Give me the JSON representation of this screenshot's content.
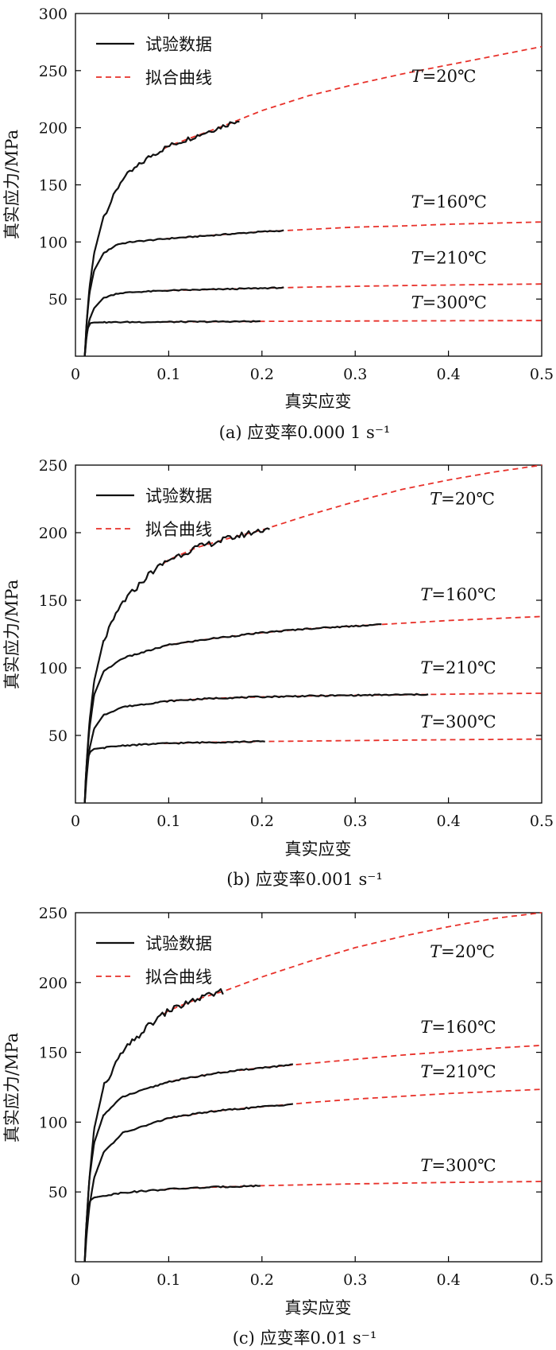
{
  "chart_data": [
    {
      "type": "line",
      "caption": "(a) 应变率0.000 1 s⁻¹",
      "xlabel": "真实应变",
      "ylabel": "真实应力/MPa",
      "xlim": [
        0,
        0.5
      ],
      "ylim": [
        0,
        300
      ],
      "xticks": [
        "0",
        "0.1",
        "0.2",
        "0.3",
        "0.4",
        "0.5"
      ],
      "yticks": [
        "50",
        "100",
        "150",
        "200",
        "250",
        "300"
      ],
      "legend": {
        "position": "top-left",
        "entries": [
          "试验数据",
          "拟合曲线"
        ]
      },
      "colors": {
        "experimental": "#111111",
        "fitted": "#e8312a"
      },
      "series": [
        {
          "name": "T=20℃",
          "label_x": 0.36,
          "label_y": 240,
          "exp_end": 0.178,
          "fit": [
            [
              0.01,
              0
            ],
            [
              0.012,
              30
            ],
            [
              0.015,
              60
            ],
            [
              0.02,
              90
            ],
            [
              0.03,
              122
            ],
            [
              0.05,
              155
            ],
            [
              0.08,
              175
            ],
            [
              0.1,
              184
            ],
            [
              0.13,
              193
            ],
            [
              0.16,
              202
            ],
            [
              0.2,
              215
            ],
            [
              0.25,
              228
            ],
            [
              0.3,
              238
            ],
            [
              0.35,
              247
            ],
            [
              0.4,
              255
            ],
            [
              0.45,
              263
            ],
            [
              0.5,
              271
            ]
          ]
        },
        {
          "name": "T=160℃",
          "label_x": 0.36,
          "label_y": 130,
          "exp_end": 0.225,
          "fit": [
            [
              0.01,
              0
            ],
            [
              0.012,
              30
            ],
            [
              0.015,
              55
            ],
            [
              0.02,
              75
            ],
            [
              0.03,
              90
            ],
            [
              0.045,
              98
            ],
            [
              0.06,
              100
            ],
            [
              0.1,
              103
            ],
            [
              0.15,
              106
            ],
            [
              0.2,
              109
            ],
            [
              0.25,
              111
            ],
            [
              0.3,
              113
            ],
            [
              0.35,
              114
            ],
            [
              0.4,
              115.5
            ],
            [
              0.45,
              116.5
            ],
            [
              0.5,
              117.5
            ]
          ]
        },
        {
          "name": "T=210℃",
          "label_x": 0.36,
          "label_y": 81,
          "exp_end": 0.225,
          "fit": [
            [
              0.01,
              0
            ],
            [
              0.012,
              18
            ],
            [
              0.015,
              32
            ],
            [
              0.02,
              42
            ],
            [
              0.03,
              51
            ],
            [
              0.045,
              55
            ],
            [
              0.06,
              56
            ],
            [
              0.1,
              57.5
            ],
            [
              0.15,
              58.5
            ],
            [
              0.2,
              59.5
            ],
            [
              0.25,
              60.5
            ],
            [
              0.3,
              61.2
            ],
            [
              0.35,
              61.8
            ],
            [
              0.4,
              62.3
            ],
            [
              0.45,
              62.8
            ],
            [
              0.5,
              63.2
            ]
          ]
        },
        {
          "name": "T=300℃",
          "label_x": 0.36,
          "label_y": 42,
          "exp_end": 0.2,
          "fit": [
            [
              0.01,
              0
            ],
            [
              0.011,
              12
            ],
            [
              0.013,
              24
            ],
            [
              0.016,
              29
            ],
            [
              0.02,
              29.5
            ],
            [
              0.05,
              29.8
            ],
            [
              0.1,
              30
            ],
            [
              0.2,
              30.5
            ],
            [
              0.3,
              30.8
            ],
            [
              0.4,
              31
            ],
            [
              0.5,
              31.2
            ]
          ]
        }
      ]
    },
    {
      "type": "line",
      "caption": "(b) 应变率0.001 s⁻¹",
      "xlabel": "真实应变",
      "ylabel": "真实应力/MPa",
      "xlim": [
        0,
        0.5
      ],
      "ylim": [
        0,
        250
      ],
      "xticks": [
        "0",
        "0.1",
        "0.2",
        "0.3",
        "0.4",
        "0.5"
      ],
      "yticks": [
        "50",
        "100",
        "150",
        "200",
        "250"
      ],
      "legend": {
        "position": "top-left",
        "entries": [
          "试验数据",
          "拟合曲线"
        ]
      },
      "colors": {
        "experimental": "#111111",
        "fitted": "#e8312a"
      },
      "series": [
        {
          "name": "T=20℃",
          "label_x": 0.38,
          "label_y": 221,
          "exp_end": 0.21,
          "fit": [
            [
              0.01,
              0
            ],
            [
              0.012,
              30
            ],
            [
              0.015,
              60
            ],
            [
              0.02,
              90
            ],
            [
              0.03,
              120
            ],
            [
              0.05,
              148
            ],
            [
              0.08,
              170
            ],
            [
              0.1,
              180
            ],
            [
              0.13,
              189
            ],
            [
              0.16,
              195
            ],
            [
              0.2,
              202
            ],
            [
              0.25,
              213
            ],
            [
              0.3,
              223
            ],
            [
              0.35,
              232
            ],
            [
              0.4,
              239
            ],
            [
              0.45,
              245
            ],
            [
              0.5,
              250
            ]
          ]
        },
        {
          "name": "T=160℃",
          "label_x": 0.37,
          "label_y": 150,
          "exp_end": 0.33,
          "fit": [
            [
              0.01,
              0
            ],
            [
              0.012,
              30
            ],
            [
              0.015,
              55
            ],
            [
              0.02,
              80
            ],
            [
              0.03,
              97
            ],
            [
              0.05,
              107
            ],
            [
              0.1,
              117
            ],
            [
              0.15,
              122
            ],
            [
              0.2,
              126
            ],
            [
              0.25,
              129
            ],
            [
              0.3,
              131
            ],
            [
              0.35,
              133
            ],
            [
              0.4,
              135
            ],
            [
              0.45,
              136.5
            ],
            [
              0.5,
              138
            ]
          ]
        },
        {
          "name": "T=210℃",
          "label_x": 0.37,
          "label_y": 96,
          "exp_end": 0.38,
          "fit": [
            [
              0.01,
              0
            ],
            [
              0.012,
              20
            ],
            [
              0.015,
              40
            ],
            [
              0.02,
              55
            ],
            [
              0.03,
              65
            ],
            [
              0.05,
              71
            ],
            [
              0.1,
              75.5
            ],
            [
              0.15,
              77.5
            ],
            [
              0.2,
              78.5
            ],
            [
              0.25,
              79.2
            ],
            [
              0.3,
              79.7
            ],
            [
              0.35,
              80.1
            ],
            [
              0.4,
              80.5
            ],
            [
              0.45,
              80.9
            ],
            [
              0.5,
              81.2
            ]
          ]
        },
        {
          "name": "T=300℃",
          "label_x": 0.37,
          "label_y": 56,
          "exp_end": 0.205,
          "fit": [
            [
              0.01,
              0
            ],
            [
              0.011,
              20
            ],
            [
              0.013,
              33
            ],
            [
              0.016,
              38
            ],
            [
              0.02,
              40
            ],
            [
              0.05,
              42.5
            ],
            [
              0.1,
              44.2
            ],
            [
              0.15,
              45
            ],
            [
              0.2,
              45.5
            ],
            [
              0.3,
              46.2
            ],
            [
              0.4,
              46.8
            ],
            [
              0.5,
              47.3
            ]
          ]
        }
      ]
    },
    {
      "type": "line",
      "caption": "(c) 应变率0.01 s⁻¹",
      "xlabel": "真实应变",
      "ylabel": "真实应力/MPa",
      "xlim": [
        0,
        0.5
      ],
      "ylim": [
        0,
        250
      ],
      "xticks": [
        "0",
        "0.1",
        "0.2",
        "0.3",
        "0.4",
        "0.5"
      ],
      "yticks": [
        "50",
        "100",
        "150",
        "200",
        "250"
      ],
      "legend": {
        "position": "top-left",
        "entries": [
          "试验数据",
          "拟合曲线"
        ]
      },
      "colors": {
        "experimental": "#111111",
        "fitted": "#e8312a"
      },
      "series": [
        {
          "name": "T=20℃",
          "label_x": 0.38,
          "label_y": 218,
          "exp_end": 0.16,
          "fit": [
            [
              0.01,
              0
            ],
            [
              0.012,
              30
            ],
            [
              0.015,
              60
            ],
            [
              0.02,
              95
            ],
            [
              0.03,
              125
            ],
            [
              0.05,
              150
            ],
            [
              0.08,
              170
            ],
            [
              0.1,
              180
            ],
            [
              0.13,
              188
            ],
            [
              0.16,
              194
            ],
            [
              0.2,
              204
            ],
            [
              0.25,
              215
            ],
            [
              0.3,
              225
            ],
            [
              0.35,
              233
            ],
            [
              0.4,
              240
            ],
            [
              0.45,
              246
            ],
            [
              0.5,
              250
            ]
          ]
        },
        {
          "name": "T=160℃",
          "label_x": 0.37,
          "label_y": 164,
          "exp_end": 0.235,
          "fit": [
            [
              0.01,
              0
            ],
            [
              0.012,
              30
            ],
            [
              0.015,
              60
            ],
            [
              0.02,
              85
            ],
            [
              0.03,
              105
            ],
            [
              0.05,
              118
            ],
            [
              0.1,
              129
            ],
            [
              0.15,
              135
            ],
            [
              0.2,
              139
            ],
            [
              0.25,
              142
            ],
            [
              0.3,
              145
            ],
            [
              0.35,
              148
            ],
            [
              0.4,
              150.5
            ],
            [
              0.45,
              153
            ],
            [
              0.5,
              155
            ]
          ]
        },
        {
          "name": "T=210℃",
          "label_x": 0.37,
          "label_y": 132,
          "exp_end": 0.235,
          "fit": [
            [
              0.01,
              0
            ],
            [
              0.012,
              20
            ],
            [
              0.015,
              40
            ],
            [
              0.02,
              60
            ],
            [
              0.03,
              78
            ],
            [
              0.05,
              92
            ],
            [
              0.1,
              103
            ],
            [
              0.15,
              108
            ],
            [
              0.2,
              111
            ],
            [
              0.25,
              114
            ],
            [
              0.3,
              116.5
            ],
            [
              0.35,
              118.5
            ],
            [
              0.4,
              120.5
            ],
            [
              0.45,
              122
            ],
            [
              0.5,
              123.5
            ]
          ]
        },
        {
          "name": "T=300℃",
          "label_x": 0.37,
          "label_y": 65,
          "exp_end": 0.2,
          "fit": [
            [
              0.01,
              0
            ],
            [
              0.011,
              20
            ],
            [
              0.013,
              38
            ],
            [
              0.016,
              44
            ],
            [
              0.02,
              46
            ],
            [
              0.05,
              49.5
            ],
            [
              0.1,
              52
            ],
            [
              0.15,
              53.5
            ],
            [
              0.2,
              54.5
            ],
            [
              0.3,
              55.8
            ],
            [
              0.4,
              56.8
            ],
            [
              0.5,
              57.5
            ]
          ]
        }
      ]
    }
  ]
}
